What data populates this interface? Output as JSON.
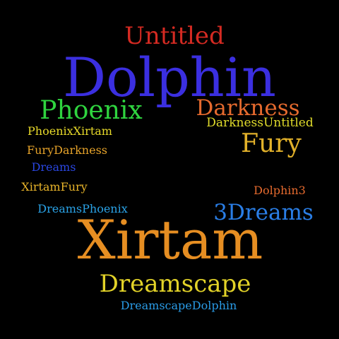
{
  "background": "#000000",
  "words": [
    {
      "id": "untitled",
      "text": "Untitled",
      "color": "#d42a22"
    },
    {
      "id": "dolphin",
      "text": "Dolphin",
      "color": "#3b2fe0"
    },
    {
      "id": "phoenix",
      "text": "Phoenix",
      "color": "#2fd43f"
    },
    {
      "id": "darkness",
      "text": "Darkness",
      "color": "#e56a2e"
    },
    {
      "id": "darknessuntitled",
      "text": "DarknessUntitled",
      "color": "#e1dc2b"
    },
    {
      "id": "phoenixxirtam",
      "text": "PhoenixXirtam",
      "color": "#e8da2a"
    },
    {
      "id": "fury",
      "text": "Fury",
      "color": "#e2b12a"
    },
    {
      "id": "furydarkness",
      "text": "FuryDarkness",
      "color": "#e5a22a"
    },
    {
      "id": "dreams",
      "text": "Dreams",
      "color": "#2a46e0"
    },
    {
      "id": "xirtamfury",
      "text": "XirtamFury",
      "color": "#e8b42a"
    },
    {
      "id": "dolphin3",
      "text": "Dolphin3",
      "color": "#e56a2e"
    },
    {
      "id": "dreamsphoenix",
      "text": "DreamsPhoenix",
      "color": "#2aa2e6"
    },
    {
      "id": "3dreams",
      "text": "3Dreams",
      "color": "#2a7ee6"
    },
    {
      "id": "xirtam",
      "text": "Xirtam",
      "color": "#e68e22"
    },
    {
      "id": "dreamscape",
      "text": "Dreamscape",
      "color": "#e2d228"
    },
    {
      "id": "dreamscapedolphin",
      "text": "DreamscapeDolphin",
      "color": "#2a9be6"
    }
  ]
}
